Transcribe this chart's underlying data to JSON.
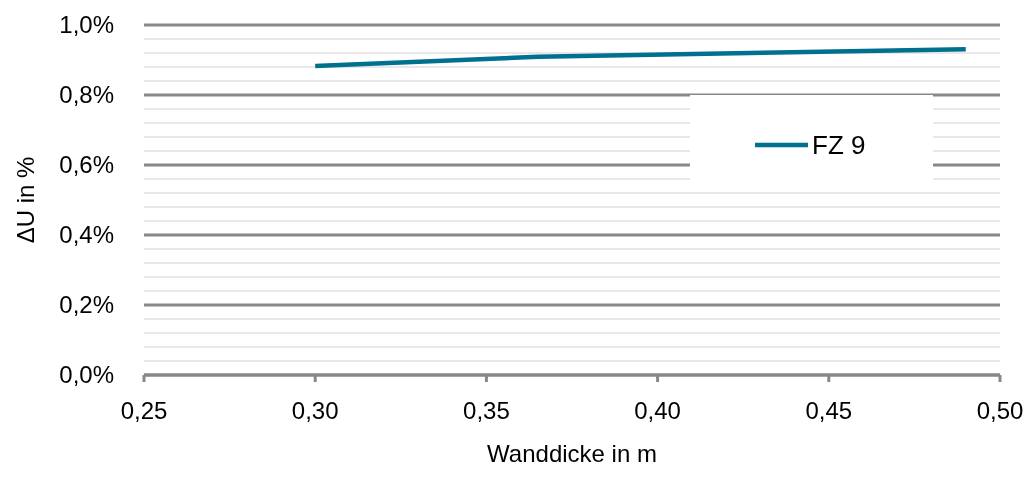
{
  "chart_data": {
    "type": "line",
    "xlabel": "Wanddicke in m",
    "ylabel": "ΔU in %",
    "series": [
      {
        "name": "FZ 9",
        "color": "#00708f",
        "x": [
          0.3,
          0.365,
          0.49
        ],
        "values": [
          0.883,
          0.909,
          0.931
        ]
      }
    ],
    "xlim": [
      0.25,
      0.5
    ],
    "xticks": [
      {
        "value": 0.25,
        "label": "0,25"
      },
      {
        "value": 0.3,
        "label": "0,30"
      },
      {
        "value": 0.35,
        "label": "0,35"
      },
      {
        "value": 0.4,
        "label": "0,40"
      },
      {
        "value": 0.45,
        "label": "0,45"
      },
      {
        "value": 0.5,
        "label": "0,50"
      }
    ],
    "ylim": [
      0,
      1
    ],
    "yticks": [
      {
        "value": 0,
        "label": "0,0%"
      },
      {
        "value": 0.04,
        "label": null
      },
      {
        "value": 0.08,
        "label": null
      },
      {
        "value": 0.12,
        "label": null
      },
      {
        "value": 0.16,
        "label": null
      },
      {
        "value": 0.2,
        "label": "0,2%"
      },
      {
        "value": 0.24,
        "label": null
      },
      {
        "value": 0.28,
        "label": null
      },
      {
        "value": 0.32,
        "label": null
      },
      {
        "value": 0.36,
        "label": null
      },
      {
        "value": 0.4,
        "label": "0,4%"
      },
      {
        "value": 0.44,
        "label": null
      },
      {
        "value": 0.48,
        "label": null
      },
      {
        "value": 0.52,
        "label": null
      },
      {
        "value": 0.56,
        "label": null
      },
      {
        "value": 0.6,
        "label": "0,6%"
      },
      {
        "value": 0.64,
        "label": null
      },
      {
        "value": 0.68,
        "label": null
      },
      {
        "value": 0.72,
        "label": null
      },
      {
        "value": 0.76,
        "label": null
      },
      {
        "value": 0.8,
        "label": "0,8%"
      },
      {
        "value": 0.84,
        "label": null
      },
      {
        "value": 0.88,
        "label": null
      },
      {
        "value": 0.92,
        "label": null
      },
      {
        "value": 0.96,
        "label": null
      },
      {
        "value": 1,
        "label": "1,0%"
      }
    ],
    "grid": "y",
    "legend": "right",
    "marker": "none",
    "line_style": "solid"
  }
}
